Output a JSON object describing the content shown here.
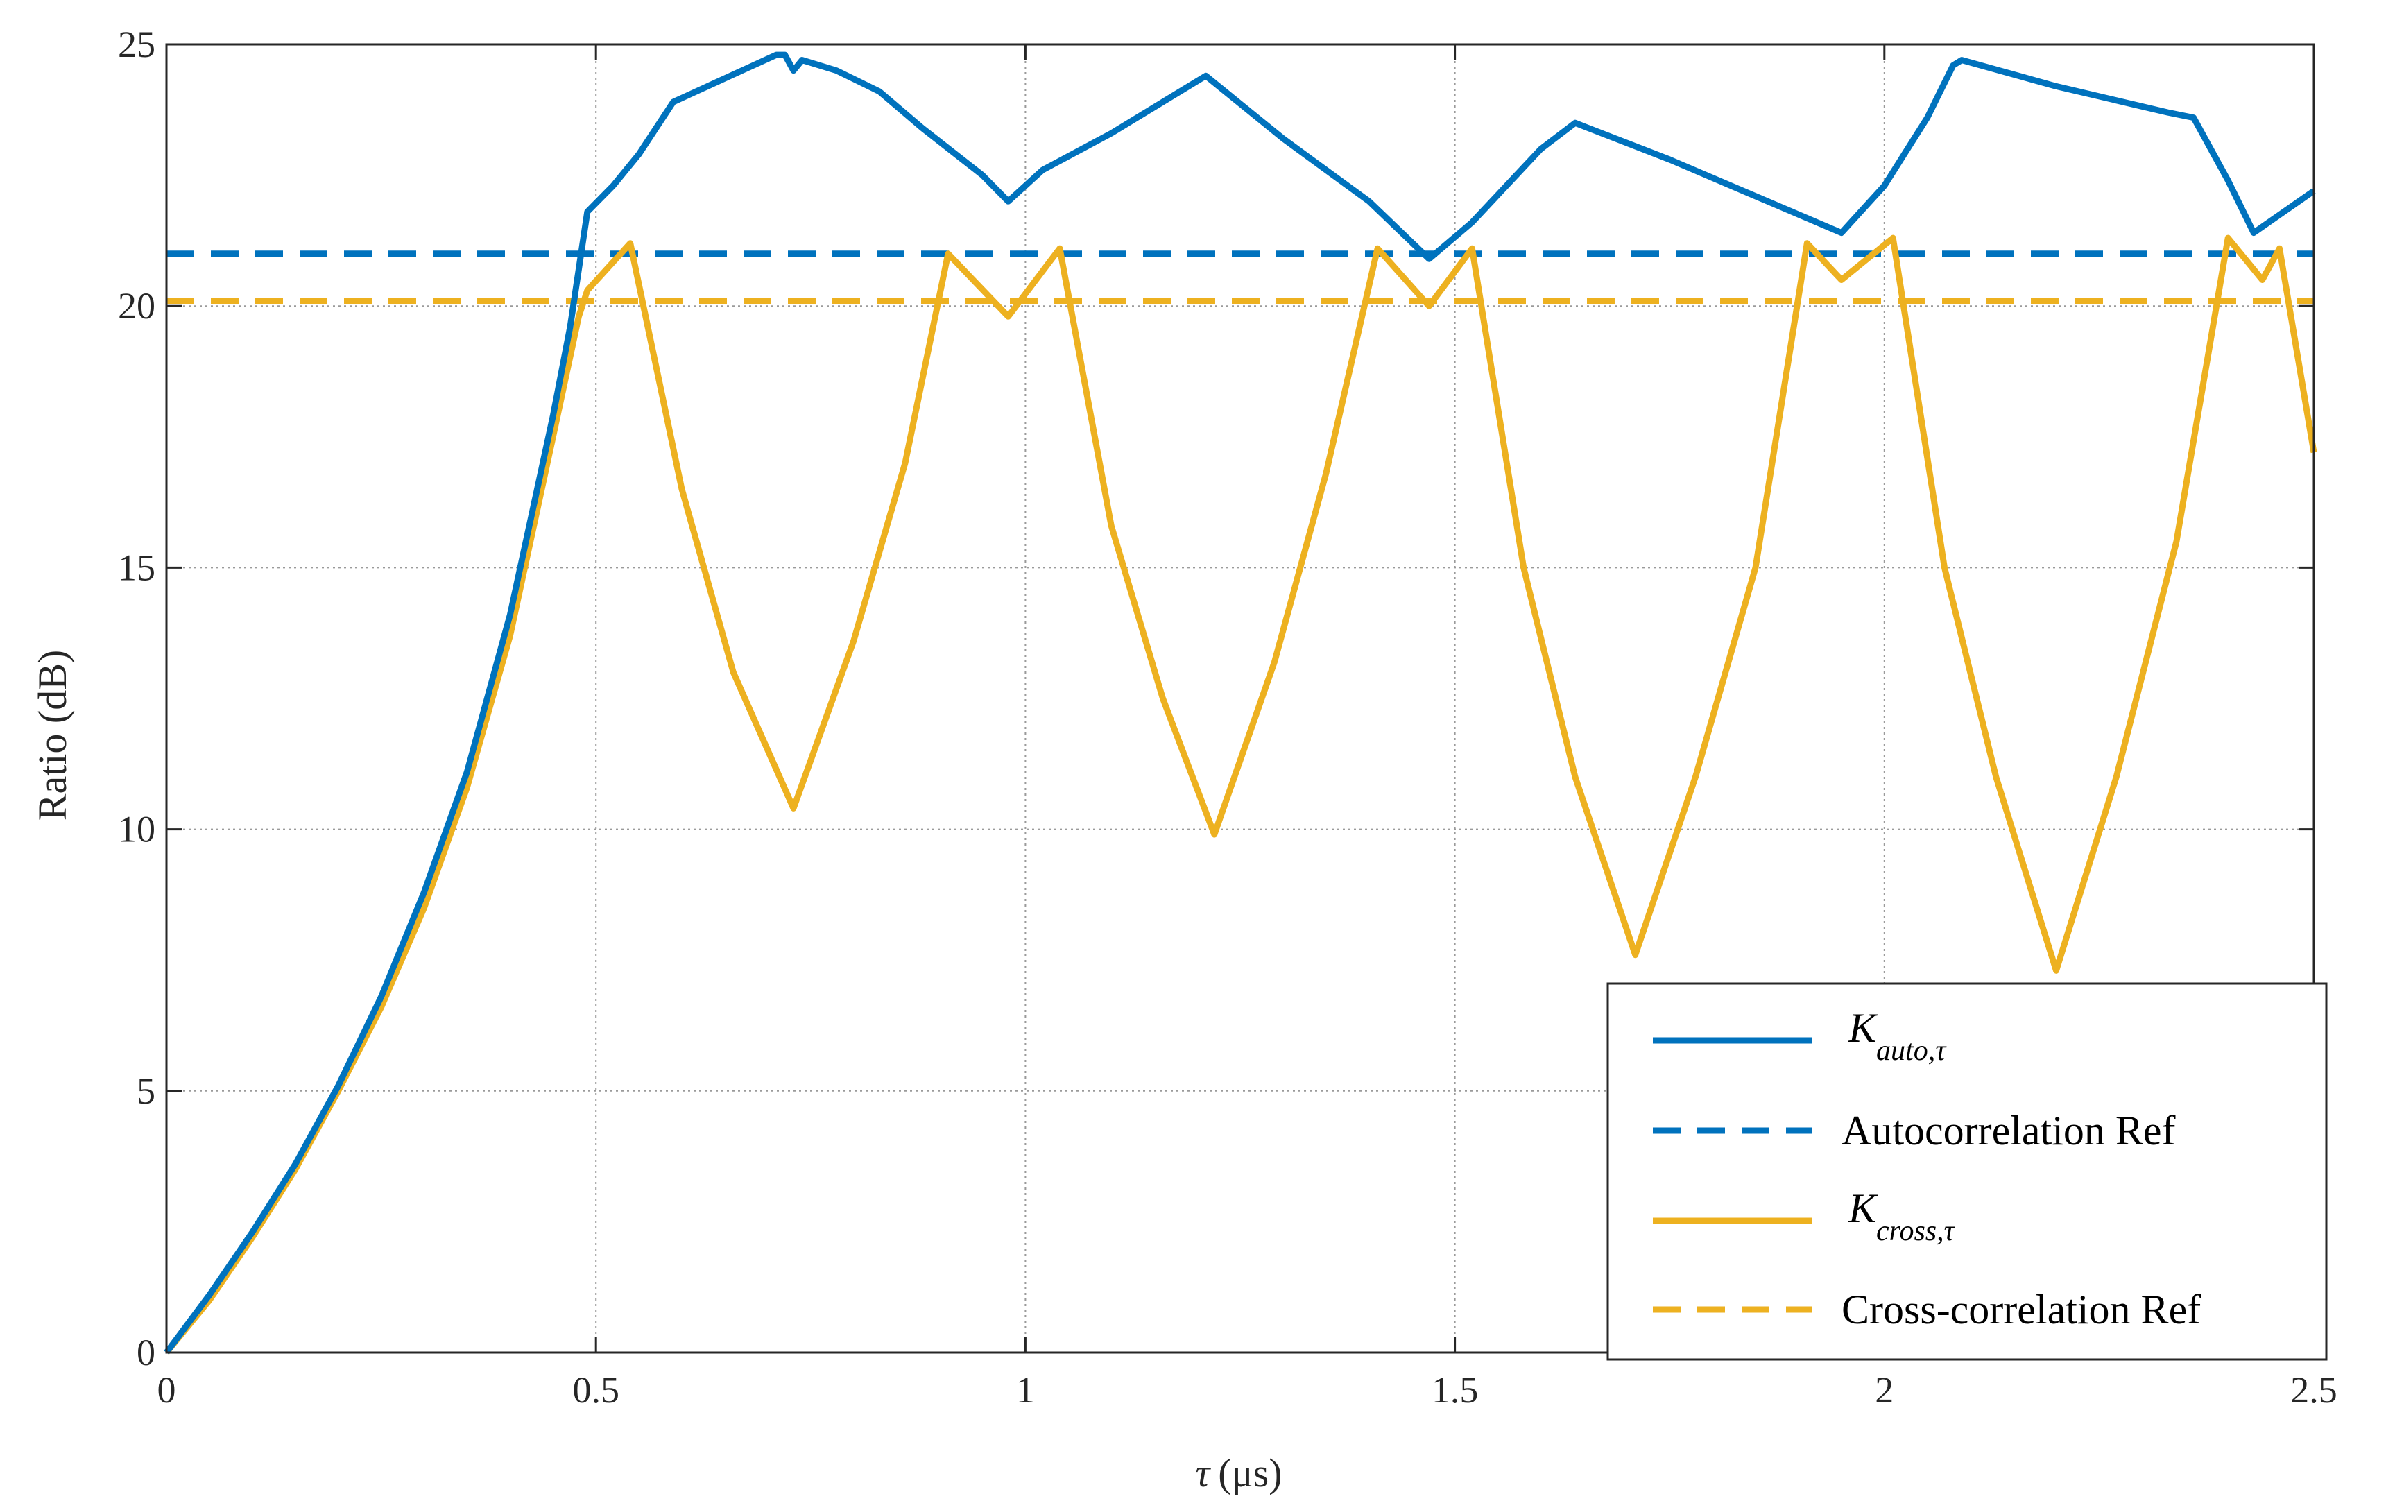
{
  "chart_data": {
    "type": "line",
    "title": "",
    "xlabel": "τ (μs)",
    "xlabel_var": "τ",
    "xlabel_unit": "(μs)",
    "ylabel": "Ratio (dB)",
    "xlim": [
      0,
      2.5
    ],
    "ylim": [
      0,
      25
    ],
    "xticks": [
      0,
      0.5,
      1,
      1.5,
      2,
      2.5
    ],
    "xtick_labels": [
      "0",
      "0.5",
      "1",
      "1.5",
      "2",
      "2.5"
    ],
    "yticks": [
      0,
      5,
      10,
      15,
      20,
      25
    ],
    "ytick_labels": [
      "0",
      "5",
      "10",
      "15",
      "20",
      "25"
    ],
    "grid": true,
    "legend_position": "bottom-right",
    "series": [
      {
        "name": "K_auto,τ",
        "legend_main": "K",
        "legend_sub": "auto,τ",
        "color": "#0072BD",
        "style": "solid",
        "x": [
          0,
          0.05,
          0.1,
          0.15,
          0.2,
          0.25,
          0.3,
          0.35,
          0.4,
          0.45,
          0.47,
          0.49,
          0.52,
          0.55,
          0.59,
          0.63,
          0.67,
          0.71,
          0.72,
          0.73,
          0.74,
          0.78,
          0.83,
          0.88,
          0.95,
          0.98,
          1.02,
          1.1,
          1.21,
          1.3,
          1.4,
          1.47,
          1.52,
          1.6,
          1.64,
          1.75,
          1.85,
          1.95,
          2.0,
          2.05,
          2.08,
          2.09,
          2.2,
          2.33,
          2.36,
          2.4,
          2.43,
          2.5
        ],
        "y": [
          0,
          1.1,
          2.3,
          3.6,
          5.1,
          6.8,
          8.8,
          11.1,
          14.1,
          17.9,
          19.6,
          21.8,
          22.3,
          22.9,
          23.9,
          24.2,
          24.5,
          24.8,
          24.8,
          24.5,
          24.7,
          24.5,
          24.1,
          23.4,
          22.5,
          22.0,
          22.6,
          23.3,
          24.4,
          23.2,
          22.0,
          20.9,
          21.6,
          23.0,
          23.5,
          22.8,
          22.1,
          21.4,
          22.3,
          23.6,
          24.6,
          24.7,
          24.2,
          23.7,
          23.6,
          22.4,
          21.4,
          22.2
        ]
      },
      {
        "name": "Autocorrelation Ref",
        "color": "#0072BD",
        "style": "dashed",
        "x": [
          0,
          2.5
        ],
        "y": [
          21.0,
          21.0
        ]
      },
      {
        "name": "K_cross,τ",
        "legend_main": "K",
        "legend_sub": "cross,τ",
        "color": "#EDB120",
        "style": "solid",
        "x": [
          0,
          0.05,
          0.1,
          0.15,
          0.2,
          0.25,
          0.3,
          0.35,
          0.4,
          0.45,
          0.48,
          0.49,
          0.54,
          0.6,
          0.66,
          0.73,
          0.8,
          0.86,
          0.91,
          0.98,
          1.04,
          1.1,
          1.16,
          1.22,
          1.29,
          1.35,
          1.41,
          1.47,
          1.52,
          1.58,
          1.64,
          1.71,
          1.78,
          1.85,
          1.91,
          1.95,
          2.01,
          2.07,
          2.13,
          2.2,
          2.27,
          2.34,
          2.4,
          2.44,
          2.46,
          2.5
        ],
        "y": [
          0,
          1.0,
          2.2,
          3.5,
          5.0,
          6.6,
          8.5,
          10.8,
          13.7,
          17.5,
          19.8,
          20.3,
          21.2,
          16.5,
          13.0,
          10.4,
          13.6,
          17.0,
          21.0,
          19.8,
          21.1,
          15.8,
          12.5,
          9.9,
          13.2,
          16.8,
          21.1,
          20.0,
          21.1,
          15.0,
          11.0,
          7.6,
          11.0,
          15.0,
          21.2,
          20.5,
          21.3,
          15.0,
          11.0,
          7.3,
          11.0,
          15.5,
          21.3,
          20.5,
          21.1,
          17.2
        ]
      },
      {
        "name": "Cross-correlation Ref",
        "color": "#EDB120",
        "style": "dashed",
        "x": [
          0,
          2.5
        ],
        "y": [
          20.1,
          20.1
        ]
      }
    ]
  }
}
